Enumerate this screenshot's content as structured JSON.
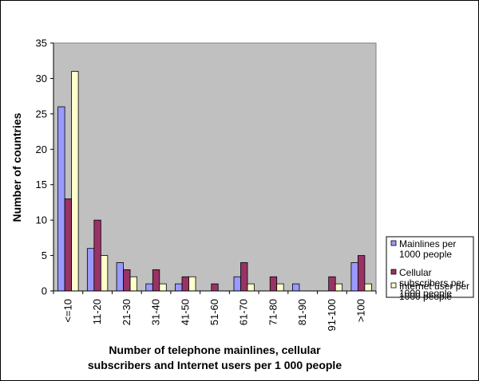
{
  "chart_data": {
    "type": "bar",
    "categories": [
      "<=10",
      "11-20",
      "21-30",
      "31-40",
      "41-50",
      "51-60",
      "61-70",
      "71-80",
      "81-90",
      "91-100",
      ">100"
    ],
    "series": [
      {
        "name": "Mainlines per 1000 people",
        "name_lines": [
          "Mainlines per",
          "1000 people"
        ],
        "color": "#9999FF",
        "values": [
          26,
          6,
          4,
          1,
          1,
          0,
          2,
          0,
          1,
          0,
          4
        ]
      },
      {
        "name": "Cellular subscribers per 1000 people",
        "name_lines": [
          "Cellular",
          "subscribers per",
          "1000 people"
        ],
        "color": "#993366",
        "values": [
          13,
          10,
          3,
          3,
          2,
          1,
          4,
          2,
          0,
          2,
          5
        ]
      },
      {
        "name": "Internet user per 1000 people",
        "name_lines": [
          "Internet user per",
          "1000 people"
        ],
        "color": "#FFFFCC",
        "values": [
          31,
          5,
          2,
          1,
          2,
          0,
          1,
          1,
          0,
          1,
          1
        ]
      }
    ],
    "title": "",
    "ylabel": "Number of countries",
    "xlabel_lines": [
      "Number of telephone mainlines, cellular",
      "subscribers and Internet users per 1 000 people"
    ],
    "ylim": [
      0,
      35
    ],
    "yticks": [
      0,
      5,
      10,
      15,
      20,
      25,
      30,
      35
    ],
    "plot_background": "#C0C0C0",
    "grid": false,
    "legend_position": "right"
  }
}
